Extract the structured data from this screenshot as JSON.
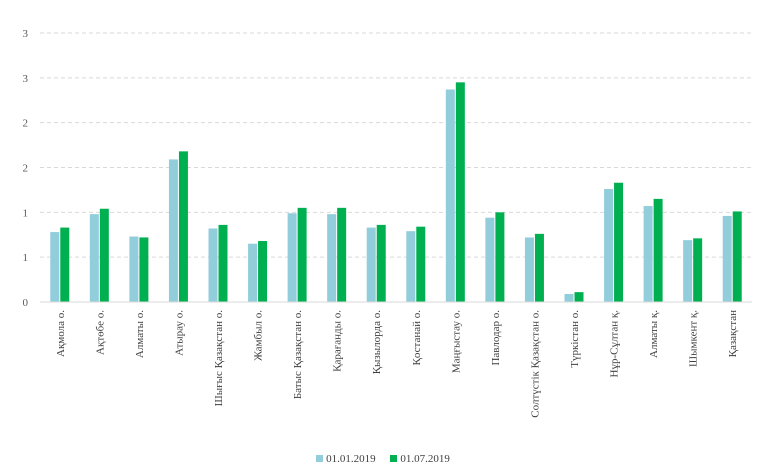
{
  "chart_data": {
    "type": "bar",
    "title": "",
    "xlabel": "",
    "ylabel": "",
    "ylim": [
      0,
      3
    ],
    "yticks": [
      0,
      0.5,
      1,
      1.5,
      2,
      2.5,
      3
    ],
    "ytick_labels": [
      "0",
      "1",
      "1",
      "2",
      "2",
      "3",
      "3"
    ],
    "grid": true,
    "legend_position": "bottom",
    "categories": [
      "Ақмола о.",
      "Ақтөбе о.",
      "Алматы о.",
      "Атырау о.",
      "Шығыс Қазақстан о.",
      "Жамбыл о.",
      "Батыс Қазақстан о.",
      "Қарағанды о.",
      "Қызылорда о.",
      "Қостанай о.",
      "Маңғыстау о.",
      "Павлодар о.",
      "Солтүстік Қазақстан о.",
      "Түркістан о.",
      "Нұр-Сұлтан қ.",
      "Алматы қ.",
      "Шымкент қ.",
      "Қазақстан"
    ],
    "series": [
      {
        "name": "01.01.2019",
        "color": "#92cddc",
        "values": [
          0.78,
          0.98,
          0.73,
          1.59,
          0.82,
          0.65,
          0.99,
          0.98,
          0.83,
          0.79,
          2.37,
          0.94,
          0.72,
          0.09,
          1.26,
          1.07,
          0.69,
          0.96
        ]
      },
      {
        "name": "01.07.2019",
        "color": "#00b050",
        "values": [
          0.83,
          1.04,
          0.72,
          1.68,
          0.86,
          0.68,
          1.05,
          1.05,
          0.86,
          0.84,
          2.45,
          1.0,
          0.76,
          0.11,
          1.33,
          1.15,
          0.71,
          1.01
        ]
      }
    ]
  }
}
